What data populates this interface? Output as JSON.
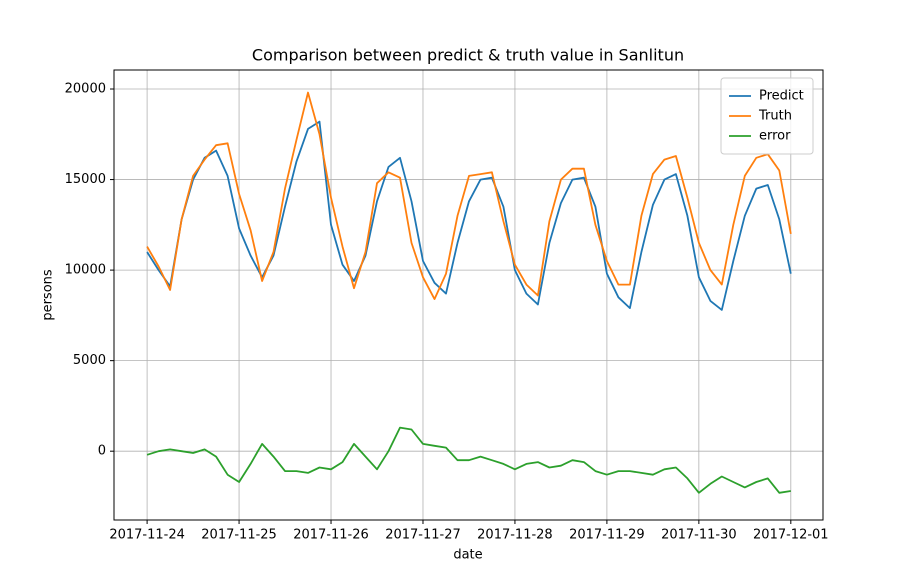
{
  "chart_data": {
    "type": "line",
    "title": "Comparison between predict & truth value in Sanlitun",
    "x_label": "date",
    "y_label": "persons",
    "x": [
      0,
      0.125,
      0.25,
      0.375,
      0.5,
      0.625,
      0.75,
      0.875,
      1,
      1.125,
      1.25,
      1.375,
      1.5,
      1.625,
      1.75,
      1.875,
      2,
      2.125,
      2.25,
      2.375,
      2.5,
      2.625,
      2.75,
      2.875,
      3,
      3.125,
      3.25,
      3.375,
      3.5,
      3.625,
      3.75,
      3.875,
      4,
      4.125,
      4.25,
      4.375,
      4.5,
      4.625,
      4.75,
      4.875,
      5,
      5.125,
      5.25,
      5.375,
      5.5,
      5.625,
      5.75,
      5.875,
      6,
      6.125,
      6.25,
      6.375,
      6.5,
      6.625,
      6.75,
      6.875,
      7
    ],
    "series": [
      {
        "name": "Predict",
        "color": "#1f77b4",
        "values": [
          11000,
          10000,
          9100,
          12800,
          15000,
          16200,
          16600,
          15200,
          12300,
          10800,
          9600,
          10800,
          13500,
          16000,
          17800,
          18200,
          12500,
          10300,
          9400,
          10800,
          13800,
          15700,
          16200,
          13800,
          10500,
          9300,
          8700,
          11500,
          13800,
          15000,
          15100,
          13500,
          10000,
          8700,
          8100,
          11500,
          13700,
          15000,
          15100,
          13500,
          9800,
          8500,
          7900,
          11000,
          13600,
          15000,
          15300,
          13000,
          9600,
          8300,
          7800,
          10500,
          13000,
          14500,
          14700,
          12800,
          9800
        ]
      },
      {
        "name": "Truth",
        "color": "#ff7f0e",
        "values": [
          11300,
          10200,
          8900,
          12800,
          15200,
          16100,
          16900,
          17000,
          14200,
          12200,
          9400,
          11000,
          14500,
          17200,
          19800,
          17500,
          14000,
          11300,
          9000,
          11000,
          14800,
          15400,
          15100,
          11500,
          9600,
          8400,
          9800,
          13000,
          15200,
          15300,
          15400,
          12700,
          10300,
          9200,
          8600,
          12700,
          15000,
          15600,
          15600,
          12500,
          10500,
          9200,
          9200,
          13000,
          15300,
          16100,
          16300,
          14000,
          11500,
          10000,
          9200,
          12500,
          15200,
          16200,
          16400,
          15500,
          12000
        ]
      },
      {
        "name": "error",
        "color": "#2ca02c",
        "values": [
          -200,
          0,
          100,
          0,
          -100,
          100,
          -300,
          -1300,
          -1700,
          -700,
          400,
          -300,
          -1100,
          -1100,
          -1200,
          -900,
          -1000,
          -600,
          400,
          -300,
          -1000,
          0,
          1300,
          1200,
          400,
          300,
          200,
          -500,
          -500,
          -300,
          -500,
          -700,
          -1000,
          -700,
          -600,
          -900,
          -800,
          -500,
          -600,
          -1100,
          -1300,
          -1100,
          -1100,
          -1200,
          -1300,
          -1000,
          -900,
          -1500,
          -2300,
          -1800,
          -1400,
          -1700,
          -2000,
          -1700,
          -1500,
          -2300,
          -2200
        ]
      }
    ],
    "xlim": [
      -0.36,
      7.35
    ],
    "xticks": [
      {
        "value": 0,
        "label": "2017-11-24"
      },
      {
        "value": 1,
        "label": "2017-11-25"
      },
      {
        "value": 2,
        "label": "2017-11-26"
      },
      {
        "value": 3,
        "label": "2017-11-27"
      },
      {
        "value": 4,
        "label": "2017-11-28"
      },
      {
        "value": 5,
        "label": "2017-11-29"
      },
      {
        "value": 6,
        "label": "2017-11-30"
      },
      {
        "value": 7,
        "label": "2017-12-01"
      }
    ],
    "ylim": [
      -3800,
      21050
    ],
    "yticks": [
      0,
      5000,
      10000,
      15000,
      20000
    ],
    "grid": true,
    "legend": "upper right"
  }
}
